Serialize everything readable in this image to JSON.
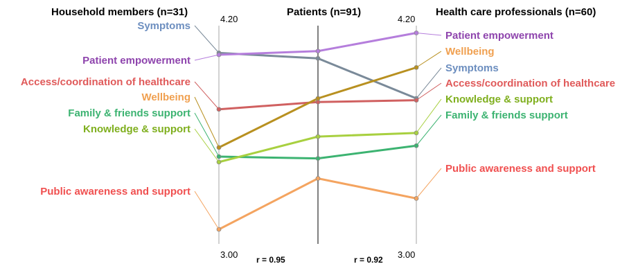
{
  "chart_data": {
    "type": "line",
    "groups": [
      "Household members (n=31)",
      "Patients (n=91)",
      "Health care professionals (n=60)"
    ],
    "ylim": [
      3.0,
      4.2
    ],
    "tick_top": "4.20",
    "tick_bottom": "3.00",
    "correlations": [
      "r = 0.95",
      "r = 0.92"
    ],
    "series": [
      {
        "name": "Symptoms",
        "color": "#6C8EBF",
        "line_color": "#7A8A99",
        "values": [
          4.05,
          4.02,
          3.8
        ]
      },
      {
        "name": "Patient empowerment",
        "color": "#8E44AD",
        "line_color": "#B57EDC",
        "values": [
          4.04,
          4.06,
          4.16
        ]
      },
      {
        "name": "Access/coordination of healthcare",
        "color": "#E05A5A",
        "line_color": "#D06060",
        "values": [
          3.74,
          3.78,
          3.79
        ]
      },
      {
        "name": "Wellbeing",
        "color": "#F0A050",
        "line_color": "#B89020",
        "values": [
          3.53,
          3.8,
          3.97
        ]
      },
      {
        "name": "Family & friends support",
        "color": "#3CB371",
        "line_color": "#3CB371",
        "values": [
          3.48,
          3.47,
          3.54
        ]
      },
      {
        "name": "Knowledge & support",
        "color": "#7FAF1E",
        "line_color": "#A8D040",
        "values": [
          3.45,
          3.59,
          3.61
        ]
      },
      {
        "name": "Public awareness and support",
        "color": "#F05050",
        "line_color": "#F4A460",
        "values": [
          3.08,
          3.36,
          3.25
        ]
      }
    ]
  }
}
